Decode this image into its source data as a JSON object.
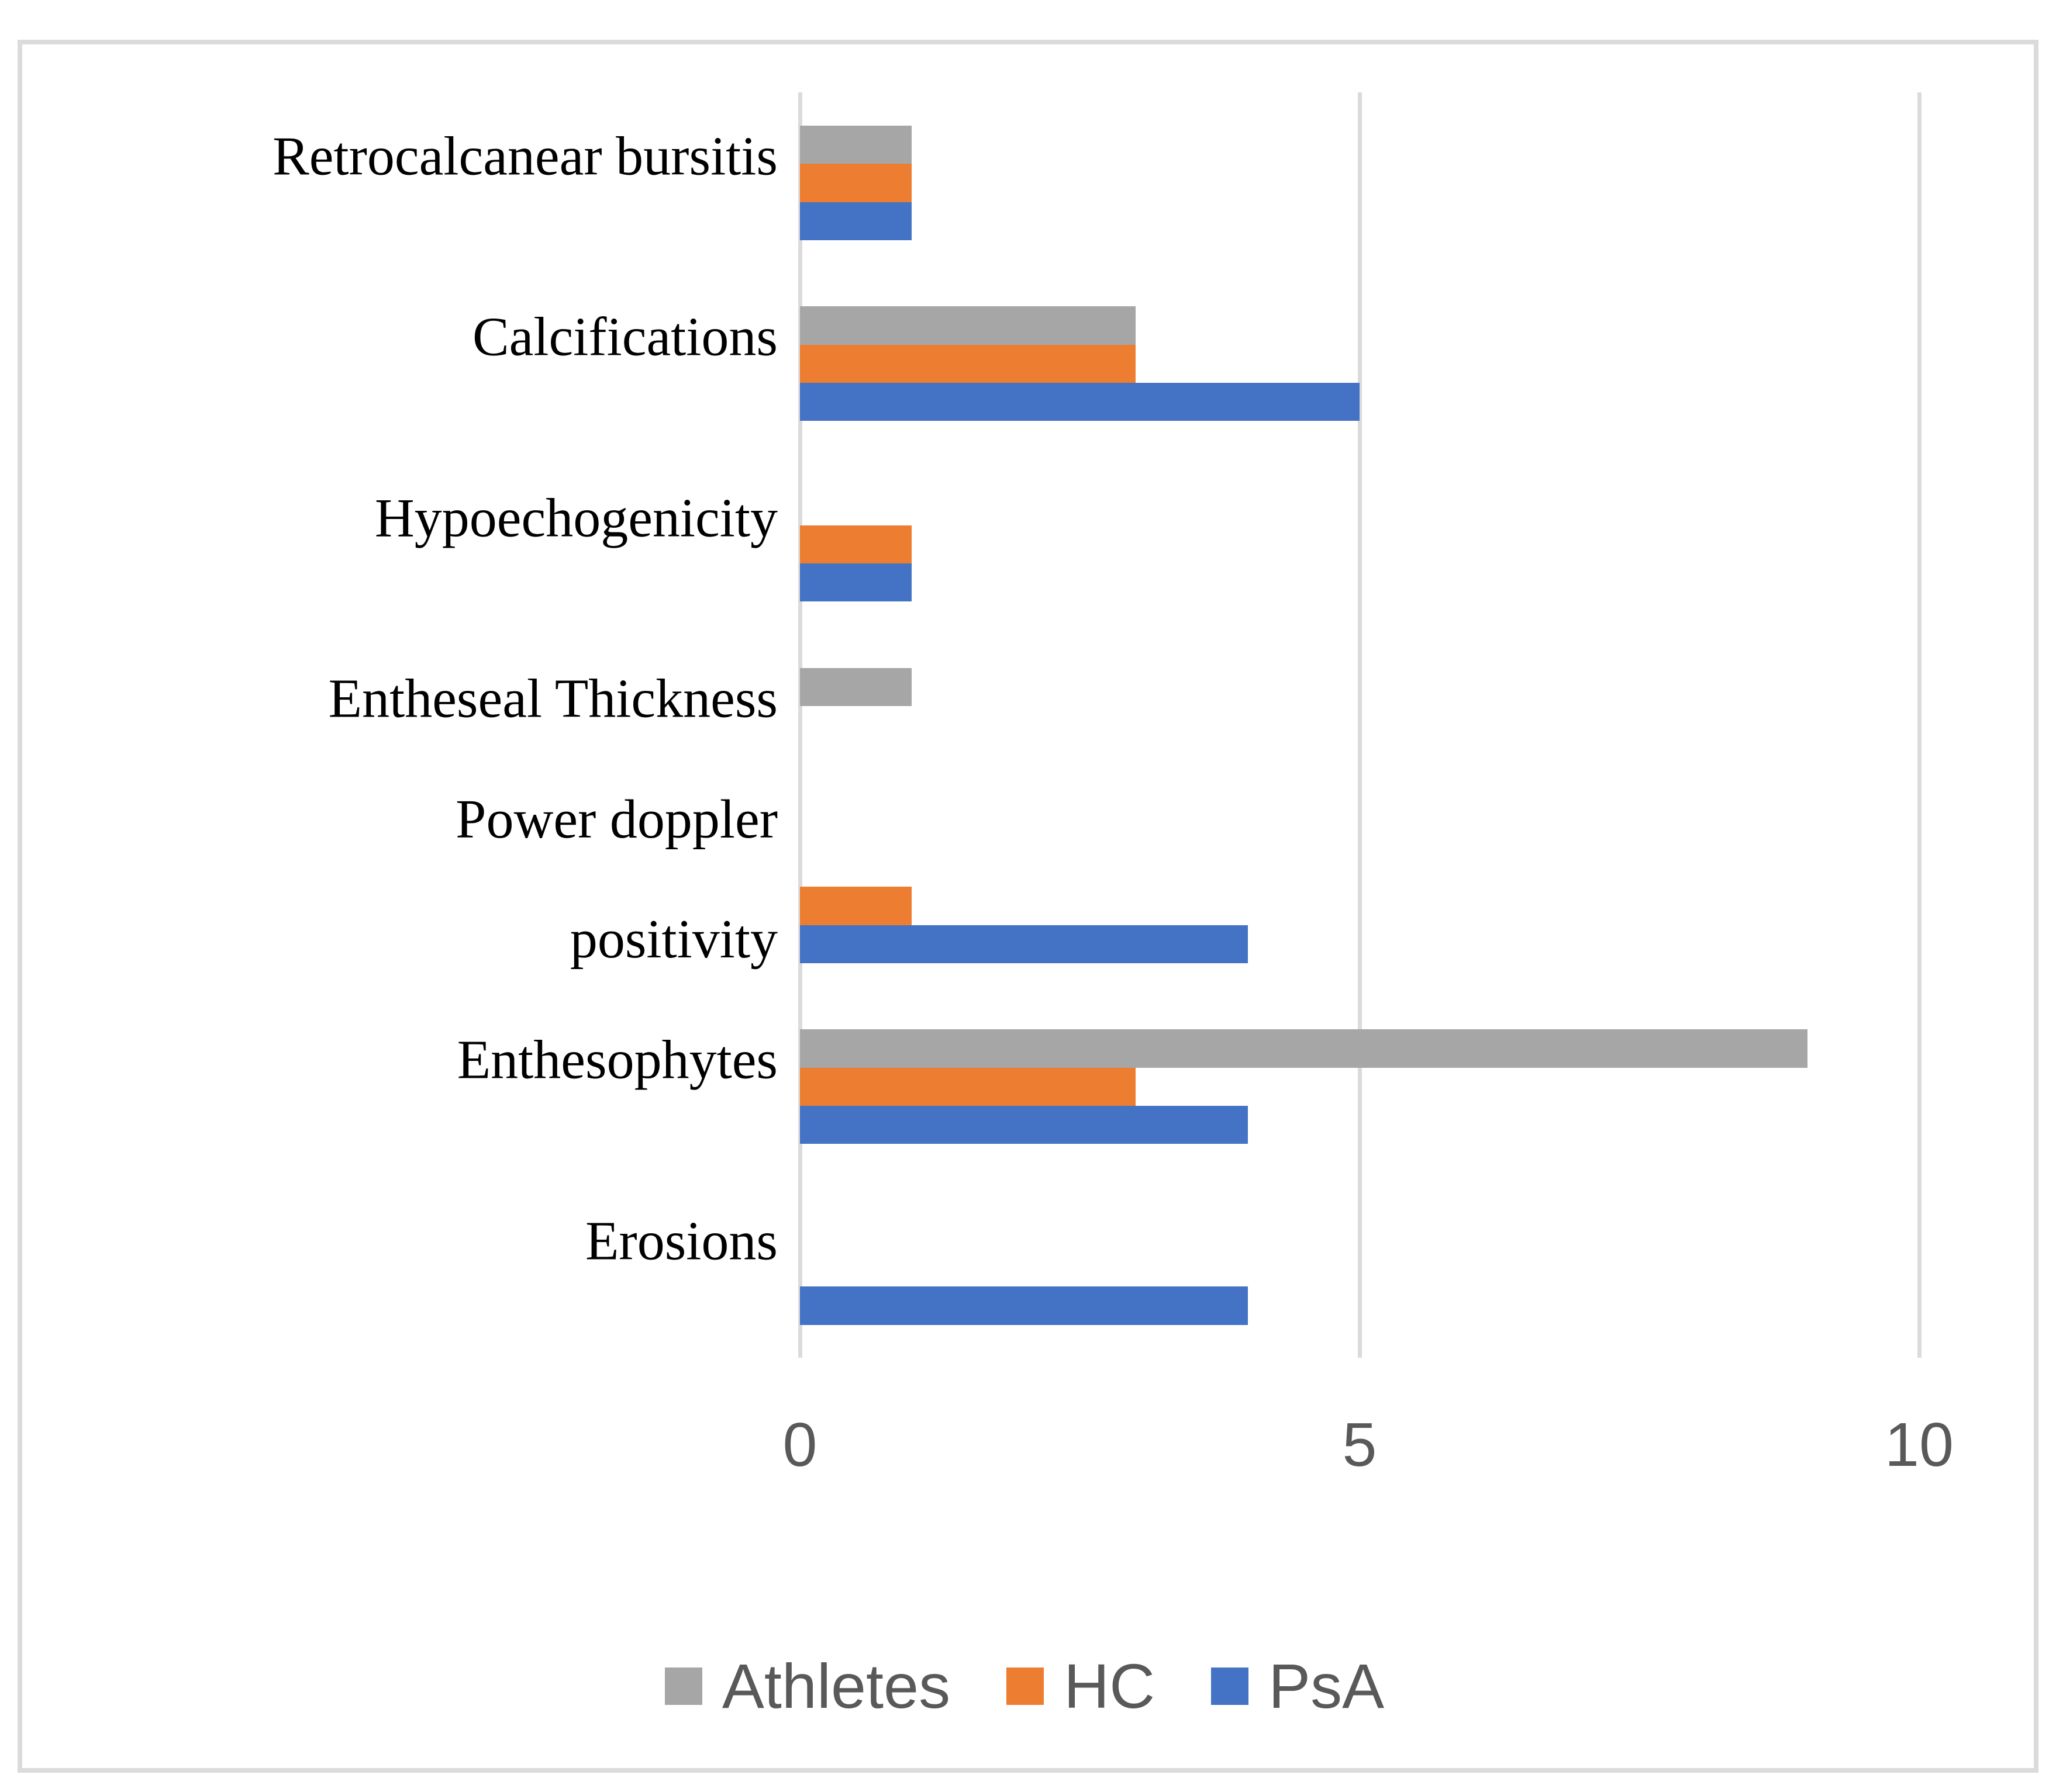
{
  "chart_data": {
    "type": "bar",
    "orientation": "horizontal",
    "title": "",
    "xlabel": "",
    "ylabel": "",
    "categories": [
      "Retrocalcanear bursitis",
      "Calcifications",
      "Hypoechogenicity",
      "Entheseal Thickness",
      "Power doppler positivity",
      "Enthesophytes",
      "Erosions"
    ],
    "category_display_lines": [
      [
        "Retrocalcanear bursitis"
      ],
      [
        "Calcifications"
      ],
      [
        "Hypoechogenicity"
      ],
      [
        "Entheseal Thickness"
      ],
      [
        "Power doppler",
        "positivity"
      ],
      [
        "Enthesophytes"
      ],
      [
        "Erosions"
      ]
    ],
    "series": [
      {
        "name": "Athletes",
        "color": "#A6A6A6",
        "values": [
          1,
          3,
          0,
          1,
          0,
          9,
          0
        ]
      },
      {
        "name": "HC",
        "color": "#ED7D31",
        "values": [
          1,
          3,
          1,
          0,
          1,
          3,
          0
        ]
      },
      {
        "name": "PsA",
        "color": "#4472C4",
        "values": [
          1,
          5,
          1,
          0,
          4,
          4,
          4
        ]
      }
    ],
    "xlim": [
      0,
      10
    ],
    "x_ticks": [
      "0",
      "5",
      "10"
    ],
    "grid": true,
    "legend_position": "bottom"
  },
  "legend": {
    "items": [
      {
        "label": "Athletes",
        "color": "#A6A6A6"
      },
      {
        "label": "HC",
        "color": "#ED7D31"
      },
      {
        "label": "PsA",
        "color": "#4472C4"
      }
    ]
  },
  "colors": {
    "background": "#FFFFFF",
    "border": "#DBDBDB",
    "grid": "#DBDBDB",
    "axis_text": "#595959",
    "legend_text": "#595959",
    "category_text": "#000000"
  }
}
